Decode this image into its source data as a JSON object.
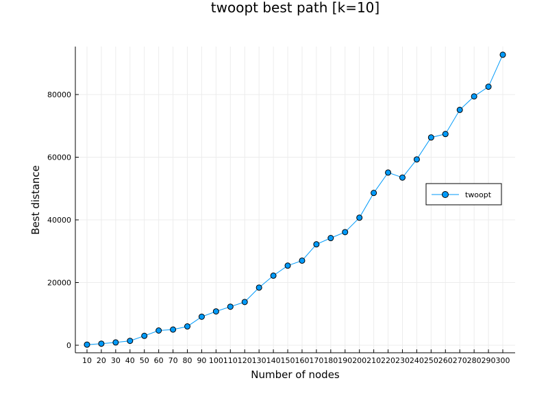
{
  "chart_data": {
    "type": "line",
    "title": "twoopt best path [k=10]",
    "xlabel": "Number of nodes",
    "ylabel": "Best distance",
    "categories": [
      "10",
      "20",
      "30",
      "40",
      "50",
      "60",
      "70",
      "80",
      "90",
      "100",
      "110",
      "120",
      "130",
      "140",
      "150",
      "160",
      "170",
      "180",
      "190",
      "200",
      "210",
      "220",
      "230",
      "240",
      "250",
      "260",
      "270",
      "280",
      "290",
      "300"
    ],
    "x": [
      10,
      20,
      30,
      40,
      50,
      60,
      70,
      80,
      90,
      100,
      110,
      120,
      130,
      140,
      150,
      160,
      170,
      180,
      190,
      200,
      210,
      220,
      230,
      240,
      250,
      260,
      270,
      280,
      290,
      300
    ],
    "series": [
      {
        "name": "twoopt",
        "values": [
          200,
          500,
          900,
          1400,
          3000,
          4700,
          5000,
          6000,
          9100,
          10800,
          12300,
          13800,
          18400,
          22200,
          25400,
          27000,
          32200,
          34200,
          36100,
          40700,
          48600,
          55100,
          53500,
          59300,
          66300,
          67400,
          75100,
          79400,
          82500,
          92700
        ]
      }
    ],
    "ylim": [
      -2000,
      95500
    ],
    "yticks": [
      0,
      20000,
      40000,
      60000,
      80000
    ],
    "ytick_labels": [
      "0",
      "20000",
      "40000",
      "60000",
      "80000"
    ],
    "grid": true,
    "legend_position": "right",
    "colors": {
      "series": "#009af9",
      "marker_edge": "#000000",
      "grid": "#ececec",
      "axis": "#000000"
    }
  }
}
